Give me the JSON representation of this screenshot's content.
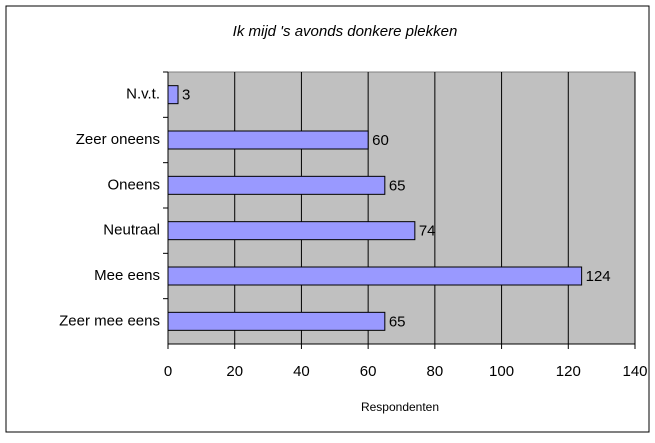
{
  "chart_data": {
    "type": "hbar",
    "title": "Ik mijd 's avonds donkere plekken",
    "categories": [
      "N.v.t.",
      "Zeer oneens",
      "Oneens",
      "Neutraal",
      "Mee eens",
      "Zeer mee eens"
    ],
    "values": [
      3,
      60,
      65,
      74,
      124,
      65
    ],
    "color": "#9999ff",
    "xlabel": "Respondenten",
    "xlim": [
      0,
      140
    ],
    "xticks": [
      0,
      20,
      40,
      60,
      80,
      100,
      120,
      140
    ],
    "grid": true
  }
}
